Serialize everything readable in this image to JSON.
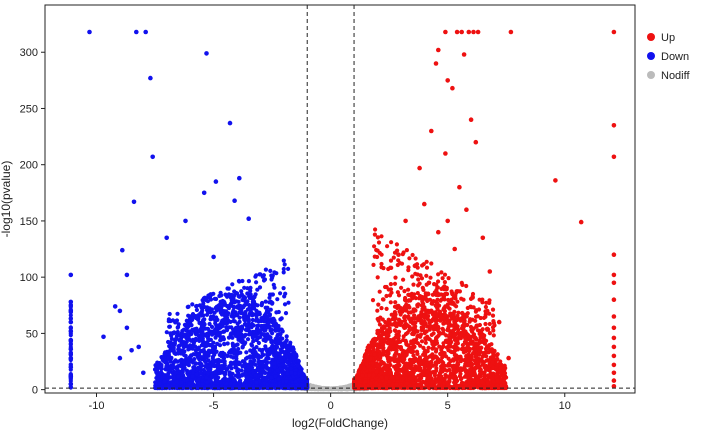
{
  "chart_data": {
    "type": "scatter",
    "xlabel": "log2(FoldChange)",
    "ylabel": "-log10(pvalue)",
    "xlim": [
      -12.2,
      13.0
    ],
    "ylim": [
      -3,
      342
    ],
    "x_ticks": [
      -10,
      -5,
      0,
      5,
      10
    ],
    "y_ticks": [
      0,
      50,
      100,
      150,
      200,
      250,
      300
    ],
    "grid": false,
    "legend_position": "right",
    "thresholds": {
      "log2fc": [
        -1,
        1
      ],
      "neg_log10_p": 1.3
    },
    "series": [
      {
        "name": "Up",
        "color": "#ee1111",
        "points": [
          [
            12.1,
            318
          ],
          [
            12.1,
            235
          ],
          [
            12.1,
            207
          ],
          [
            12.1,
            120
          ],
          [
            12.1,
            102
          ],
          [
            12.1,
            95
          ],
          [
            12.1,
            80
          ],
          [
            12.1,
            65
          ],
          [
            12.1,
            55
          ],
          [
            12.1,
            46
          ],
          [
            12.1,
            38
          ],
          [
            12.1,
            30
          ],
          [
            12.1,
            22
          ],
          [
            12.1,
            15
          ],
          [
            12.1,
            8
          ],
          [
            12.1,
            3
          ],
          [
            5.6,
            318
          ],
          [
            5.9,
            318
          ],
          [
            6.3,
            318
          ],
          [
            7.7,
            318
          ],
          [
            4.9,
            318
          ],
          [
            5.4,
            318
          ],
          [
            6.1,
            318
          ],
          [
            4.6,
            302
          ],
          [
            4.5,
            290
          ],
          [
            5.0,
            275
          ],
          [
            5.2,
            268
          ],
          [
            5.7,
            298
          ],
          [
            6.0,
            240
          ],
          [
            9.6,
            186
          ],
          [
            10.7,
            149
          ],
          [
            4.3,
            230
          ],
          [
            3.8,
            197
          ],
          [
            4.9,
            210
          ],
          [
            5.5,
            180
          ],
          [
            6.2,
            220
          ],
          [
            4.0,
            165
          ],
          [
            5.0,
            150
          ],
          [
            5.8,
            160
          ],
          [
            6.5,
            135
          ],
          [
            3.2,
            150
          ],
          [
            4.6,
            140
          ],
          [
            2.9,
            120
          ],
          [
            3.6,
            110
          ],
          [
            5.3,
            125
          ],
          [
            6.8,
            105
          ],
          [
            7.2,
            60
          ],
          [
            7.6,
            28
          ],
          [
            4.2,
            95
          ]
        ],
        "cloud": {
          "x_range": [
            1.0,
            7.5
          ],
          "peak_neg_log10_p": 95,
          "note": "dense cloud of upregulated genes"
        }
      },
      {
        "name": "Down",
        "color": "#1111ee",
        "points": [
          [
            -11.1,
            102
          ],
          [
            -11.1,
            78
          ],
          [
            -11.1,
            70
          ],
          [
            -11.1,
            60
          ],
          [
            -11.1,
            52
          ],
          [
            -11.1,
            44
          ],
          [
            -11.1,
            36
          ],
          [
            -11.1,
            28
          ],
          [
            -11.1,
            20
          ],
          [
            -11.1,
            12
          ],
          [
            -11.1,
            5
          ],
          [
            -11.1,
            2
          ],
          [
            -10.3,
            318
          ],
          [
            -8.3,
            318
          ],
          [
            -7.9,
            318
          ],
          [
            -5.3,
            299
          ],
          [
            -7.7,
            277
          ],
          [
            -4.3,
            237
          ],
          [
            -7.6,
            207
          ],
          [
            -4.9,
            185
          ],
          [
            -3.9,
            188
          ],
          [
            -4.1,
            168
          ],
          [
            -5.4,
            175
          ],
          [
            -8.4,
            167
          ],
          [
            -3.5,
            152
          ],
          [
            -6.2,
            150
          ],
          [
            -8.9,
            124
          ],
          [
            -8.7,
            102
          ],
          [
            -7.0,
            135
          ],
          [
            -5.0,
            118
          ],
          [
            -9.2,
            74
          ],
          [
            -9.0,
            70
          ],
          [
            -8.7,
            55
          ],
          [
            -8.2,
            38
          ],
          [
            -9.7,
            47
          ],
          [
            -9.0,
            28
          ],
          [
            -8.5,
            35
          ],
          [
            -8.0,
            15
          ]
        ],
        "cloud": {
          "x_range": [
            -7.5,
            -1.0
          ],
          "peak_neg_log10_p": 90,
          "note": "dense cloud of downregulated genes"
        }
      },
      {
        "name": "Nodiff",
        "color": "#bbbbbb",
        "cloud": {
          "x_range": [
            -1.6,
            1.6
          ],
          "peak_neg_log10_p": 12,
          "note": "non-significant genes near origin"
        }
      }
    ]
  }
}
